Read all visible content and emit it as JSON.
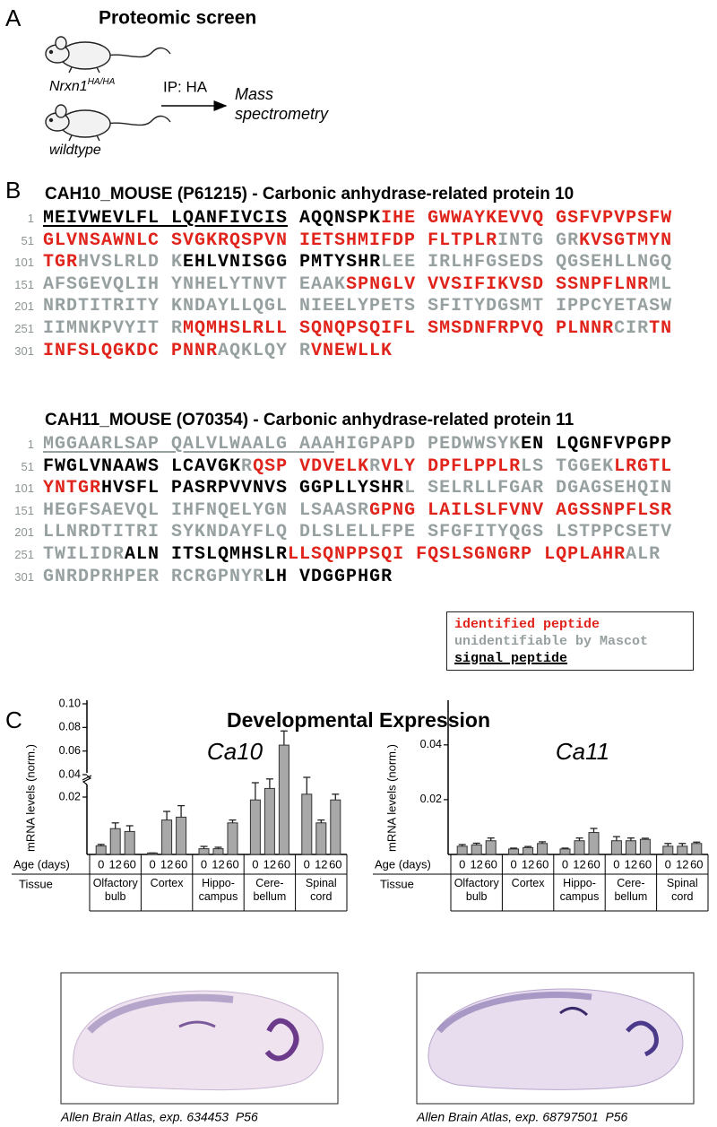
{
  "panel_a": {
    "label": "A",
    "title": "Proteomic screen",
    "genotype_1": {
      "gene": "Nrxn1",
      "allele": "HA/HA"
    },
    "genotype_2": "wildtype",
    "arrow_label": "IP: HA",
    "result_1": "Mass",
    "result_2": "spectrometry"
  },
  "panel_b": {
    "label": "B",
    "colors": {
      "identified": "#e0231b",
      "unidentifiable": "#97a0a0",
      "other": "#000000"
    },
    "proteins": [
      {
        "title": "CAH10_MOUSE (P61215) - Carbonic anhydrase-related protein 10",
        "lines": [
          {
            "number": 1,
            "segments": [
              {
                "text": "MEIVWEVLFL LQANFIVCIS",
                "style": "other",
                "underline": true
              },
              {
                "text": " AQQNSPK",
                "style": "other"
              },
              {
                "text": "IHE GWWAYKEVVQ GSFVPVPSFW",
                "style": "identified"
              }
            ]
          },
          {
            "number": 51,
            "segments": [
              {
                "text": "GLVNSAWNLC SVGKRQSPVN IETSHMIFDP FLTPLR",
                "style": "identified"
              },
              {
                "text": "INTG GR",
                "style": "unidentifiable"
              },
              {
                "text": "KVSGTMYN",
                "style": "identified"
              }
            ]
          },
          {
            "number": 101,
            "segments": [
              {
                "text": "TGR",
                "style": "identified"
              },
              {
                "text": "HVSLRLD K",
                "style": "unidentifiable"
              },
              {
                "text": "EHLVNISGG PMTYSHR",
                "style": "other"
              },
              {
                "text": "LEE IRLHFGSEDS QGSEHLLNGQ",
                "style": "unidentifiable"
              }
            ]
          },
          {
            "number": 151,
            "segments": [
              {
                "text": "AFSGEVQLIH YNHELYTNVT EAAK",
                "style": "unidentifiable"
              },
              {
                "text": "SPNGLV VVSIFIKVSD SSNPFLNR",
                "style": "identified"
              },
              {
                "text": "ML",
                "style": "unidentifiable"
              }
            ]
          },
          {
            "number": 201,
            "segments": [
              {
                "text": "NRDTITRITY KNDAYLLQGL NIEELYPETS SFITYDGSMT IPPCYETASW",
                "style": "unidentifiable"
              }
            ]
          },
          {
            "number": 251,
            "segments": [
              {
                "text": "IIMNKPVYIT R",
                "style": "unidentifiable"
              },
              {
                "text": "MQMHSLRLL SQNQPSQIFL SMSDNFRPVQ PLNNR",
                "style": "identified"
              },
              {
                "text": "CIR",
                "style": "unidentifiable"
              },
              {
                "text": "TN",
                "style": "identified"
              }
            ]
          },
          {
            "number": 301,
            "segments": [
              {
                "text": "INFSLQGKDC PNNR",
                "style": "identified"
              },
              {
                "text": "AQKLQY R",
                "style": "unidentifiable"
              },
              {
                "text": "VNEWLLK",
                "style": "identified"
              }
            ]
          }
        ]
      },
      {
        "title": "CAH11_MOUSE (O70354) - Carbonic anhydrase-related protein 11",
        "lines": [
          {
            "number": 1,
            "segments": [
              {
                "text": "MGGAARLSAP QALVLWAALG AAA",
                "style": "unidentifiable",
                "underline": true
              },
              {
                "text": "HIGPAPD PEDWWSYK",
                "style": "unidentifiable"
              },
              {
                "text": "EN LQGNFVPGPP",
                "style": "other"
              }
            ]
          },
          {
            "number": 51,
            "segments": [
              {
                "text": "FWGLVNAAWS LCAVGK",
                "style": "other"
              },
              {
                "text": "R",
                "style": "unidentifiable"
              },
              {
                "text": "QSP VDVELK",
                "style": "identified"
              },
              {
                "text": "R",
                "style": "unidentifiable"
              },
              {
                "text": "VLY DPFLPPLR",
                "style": "identified"
              },
              {
                "text": "LS TGGEK",
                "style": "unidentifiable"
              },
              {
                "text": "LRGTL",
                "style": "identified"
              }
            ]
          },
          {
            "number": 101,
            "segments": [
              {
                "text": "YNTGR",
                "style": "identified"
              },
              {
                "text": "HVSFL PASRPVVNVS GGPLLYSHR",
                "style": "other"
              },
              {
                "text": "L SELRLLFGAR DGAGSEHQIN",
                "style": "unidentifiable"
              }
            ]
          },
          {
            "number": 151,
            "segments": [
              {
                "text": "HEGFSAEVQL IHFNQELYGN LSAASR",
                "style": "unidentifiable"
              },
              {
                "text": "GPNG LAILSLFVNV AGSSNPFLSR",
                "style": "identified"
              }
            ]
          },
          {
            "number": 201,
            "segments": [
              {
                "text": "LLNRDTITRI SYKNDAYFLQ DLSLELLFPE SFGFITYQGS LSTPPCSETV",
                "style": "unidentifiable"
              }
            ]
          },
          {
            "number": 251,
            "segments": [
              {
                "text": "TWILIDR",
                "style": "unidentifiable"
              },
              {
                "text": "ALN ITSLQMHSLR",
                "style": "other"
              },
              {
                "text": "LLSQNPPSQI FQSLSGNGRP LQPLAHR",
                "style": "identified"
              },
              {
                "text": "ALR",
                "style": "unidentifiable"
              }
            ]
          },
          {
            "number": 301,
            "segments": [
              {
                "text": "GNRDPRHPER RCRGPNYR",
                "style": "unidentifiable"
              },
              {
                "text": "LH VDGGPHGR",
                "style": "other"
              }
            ]
          }
        ]
      }
    ],
    "legend": [
      {
        "text": "identified peptide",
        "style": "identified"
      },
      {
        "text": "unidentifiable by Mascot",
        "style": "unidentifiable"
      },
      {
        "text": "signal peptide",
        "style": "other",
        "underline": true
      }
    ]
  },
  "panel_c": {
    "label": "C",
    "title": "Developmental Expression"
  },
  "chart_data": [
    {
      "type": "bar",
      "title": "Ca10",
      "y_label": "mRNA levels (norm.)",
      "x_row_labels": [
        "Age (days)",
        "Tissue"
      ],
      "categories": [
        "Olfactory bulb",
        "Cortex",
        "Hippo-campus",
        "Cere-bellum",
        "Spinal cord"
      ],
      "series": [
        {
          "name": "0",
          "color": "#a8a8a8",
          "values": [
            0.003,
            0.0005,
            0.002,
            0.019,
            0.021
          ],
          "errors": [
            0.0005,
            0,
            0.0008,
            0.006,
            0.014
          ]
        },
        {
          "name": "12",
          "color": "#a8a8a8",
          "values": [
            0.009,
            0.012,
            0.002,
            0.023,
            0.011
          ],
          "errors": [
            0.002,
            0.003,
            0.0005,
            0.009,
            0.001
          ]
        },
        {
          "name": "60",
          "color": "#a8a8a8",
          "values": [
            0.008,
            0.013,
            0.011,
            0.065,
            0.019
          ],
          "errors": [
            0.002,
            0.004,
            0.001,
            0.012,
            0.002
          ]
        }
      ],
      "ylim": [
        0,
        0.1
      ],
      "y_break": [
        0.025,
        0.04
      ],
      "yticks": [
        0.02,
        0.04,
        0.06,
        0.08,
        {
          "value": 0.1,
          "label": "0.10"
        }
      ]
    },
    {
      "type": "bar",
      "title": "Ca11",
      "y_label": "mRNA levels (norm.)",
      "x_row_labels": [
        "Age (days)",
        "Tissue"
      ],
      "categories": [
        "Olfactory bulb",
        "Cortex",
        "Hippo-campus",
        "Cere-bellum",
        "Spinal cord"
      ],
      "series": [
        {
          "name": "0",
          "color": "#a8a8a8",
          "values": [
            0.003,
            0.002,
            0.002,
            0.005,
            0.003
          ],
          "errors": [
            0.0006,
            0.0003,
            0.0003,
            0.0015,
            0.001
          ]
        },
        {
          "name": "12",
          "color": "#a8a8a8",
          "values": [
            0.0035,
            0.0025,
            0.005,
            0.005,
            0.003
          ],
          "errors": [
            0.0006,
            0.0004,
            0.001,
            0.001,
            0.001
          ]
        },
        {
          "name": "60",
          "color": "#a8a8a8",
          "values": [
            0.005,
            0.004,
            0.008,
            0.0055,
            0.004
          ],
          "errors": [
            0.001,
            0.0006,
            0.0015,
            0.0004,
            0.0005
          ]
        }
      ],
      "ylim": [
        0,
        0.055
      ],
      "yticks": [
        0.02,
        0.04
      ]
    }
  ],
  "images": [
    {
      "caption": "Allen Brain Atlas, exp. 634453  P56"
    },
    {
      "caption": "Allen Brain Atlas, exp. 68797501  P56"
    }
  ]
}
